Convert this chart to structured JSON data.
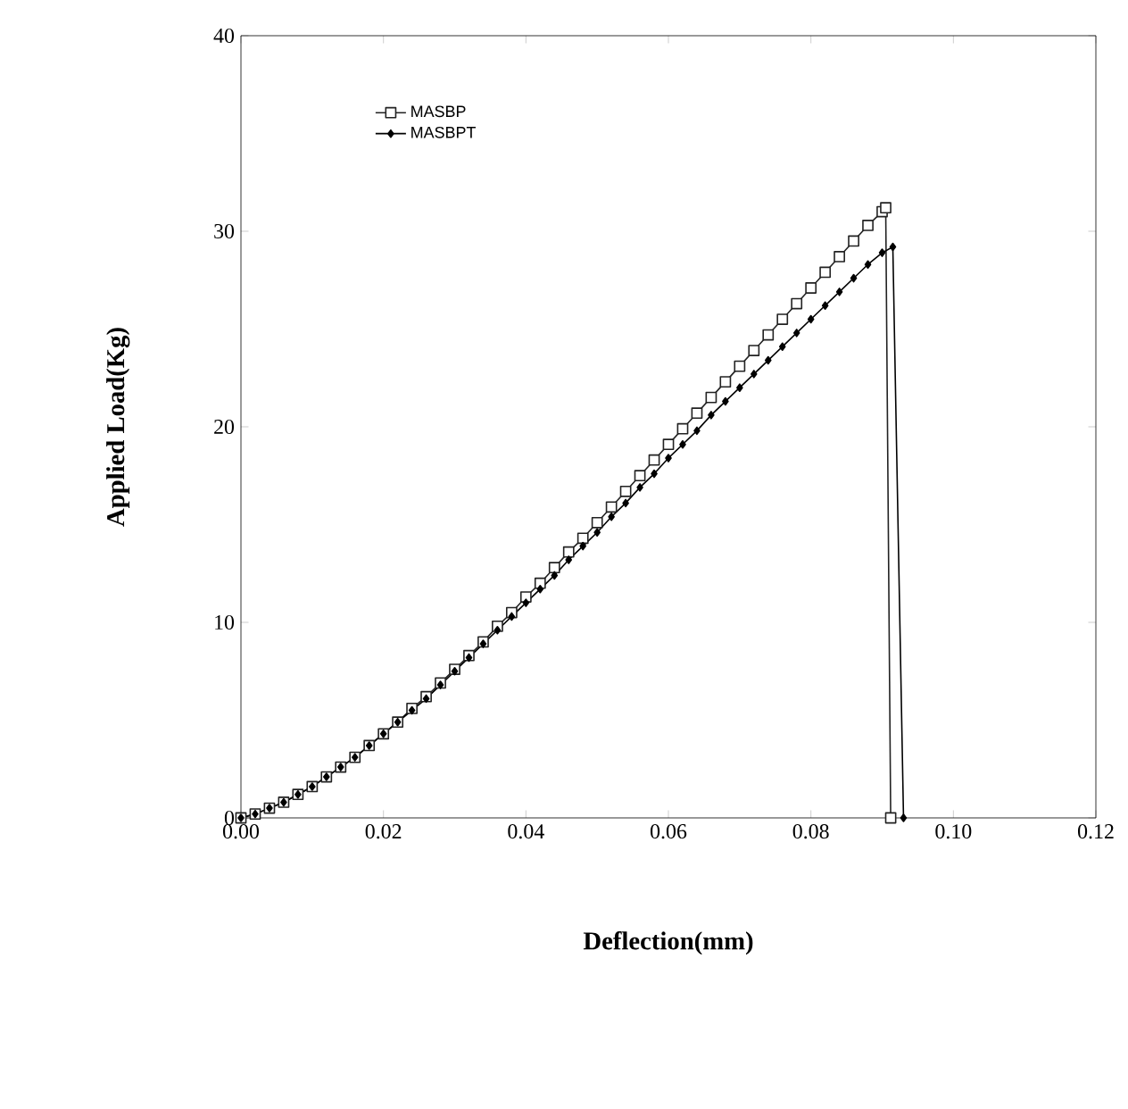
{
  "chart_data": {
    "type": "line",
    "xlabel": "Deflection(mm)",
    "ylabel": "Applied  Load(Kg)",
    "xlim": [
      0,
      0.12
    ],
    "ylim": [
      0,
      40
    ],
    "xticks": [
      {
        "value": 0,
        "label": "0.00"
      },
      {
        "value": 0.02,
        "label": "0.02"
      },
      {
        "value": 0.04,
        "label": "0.04"
      },
      {
        "value": 0.06,
        "label": "0.06"
      },
      {
        "value": 0.08,
        "label": "0.08"
      },
      {
        "value": 0.1,
        "label": "0.10"
      },
      {
        "value": 0.12,
        "label": "0.12"
      }
    ],
    "yticks": [
      0,
      10,
      20,
      30,
      40
    ],
    "legend": "top left",
    "grid": false,
    "series": [
      {
        "name": "MASBP",
        "color": "#222222",
        "marker": "square",
        "x": [
          0,
          0.002,
          0.004,
          0.006,
          0.008,
          0.01,
          0.012,
          0.014,
          0.016,
          0.018,
          0.02,
          0.022,
          0.024,
          0.026,
          0.028,
          0.03,
          0.032,
          0.034,
          0.036,
          0.038,
          0.04,
          0.042,
          0.044,
          0.046,
          0.048,
          0.05,
          0.052,
          0.054,
          0.056,
          0.058,
          0.06,
          0.062,
          0.064,
          0.066,
          0.068,
          0.07,
          0.072,
          0.074,
          0.076,
          0.078,
          0.08,
          0.082,
          0.084,
          0.086,
          0.088,
          0.09,
          0.0905,
          0.0912
        ],
        "values": [
          0,
          0.2,
          0.5,
          0.8,
          1.2,
          1.6,
          2.1,
          2.6,
          3.1,
          3.7,
          4.3,
          4.9,
          5.6,
          6.2,
          6.9,
          7.6,
          8.3,
          9.0,
          9.8,
          10.5,
          11.3,
          12.0,
          12.8,
          13.6,
          14.3,
          15.1,
          15.9,
          16.7,
          17.5,
          18.3,
          19.1,
          19.9,
          20.7,
          21.5,
          22.3,
          23.1,
          23.9,
          24.7,
          25.5,
          26.3,
          27.1,
          27.9,
          28.7,
          29.5,
          30.3,
          31.0,
          31.2,
          0
        ]
      },
      {
        "name": "MASBPT",
        "color": "#000000",
        "marker": "diamond",
        "x": [
          0,
          0.002,
          0.004,
          0.006,
          0.008,
          0.01,
          0.012,
          0.014,
          0.016,
          0.018,
          0.02,
          0.022,
          0.024,
          0.026,
          0.028,
          0.03,
          0.032,
          0.034,
          0.036,
          0.038,
          0.04,
          0.042,
          0.044,
          0.046,
          0.048,
          0.05,
          0.052,
          0.054,
          0.056,
          0.058,
          0.06,
          0.062,
          0.064,
          0.066,
          0.068,
          0.07,
          0.072,
          0.074,
          0.076,
          0.078,
          0.08,
          0.082,
          0.084,
          0.086,
          0.088,
          0.09,
          0.0915,
          0.093
        ],
        "values": [
          0,
          0.2,
          0.5,
          0.8,
          1.2,
          1.6,
          2.1,
          2.6,
          3.1,
          3.7,
          4.3,
          4.9,
          5.5,
          6.1,
          6.8,
          7.5,
          8.2,
          8.9,
          9.6,
          10.3,
          11.0,
          11.7,
          12.4,
          13.2,
          13.9,
          14.6,
          15.4,
          16.1,
          16.9,
          17.6,
          18.4,
          19.1,
          19.8,
          20.6,
          21.3,
          22.0,
          22.7,
          23.4,
          24.1,
          24.8,
          25.5,
          26.2,
          26.9,
          27.6,
          28.3,
          28.9,
          29.2,
          0
        ]
      }
    ]
  }
}
